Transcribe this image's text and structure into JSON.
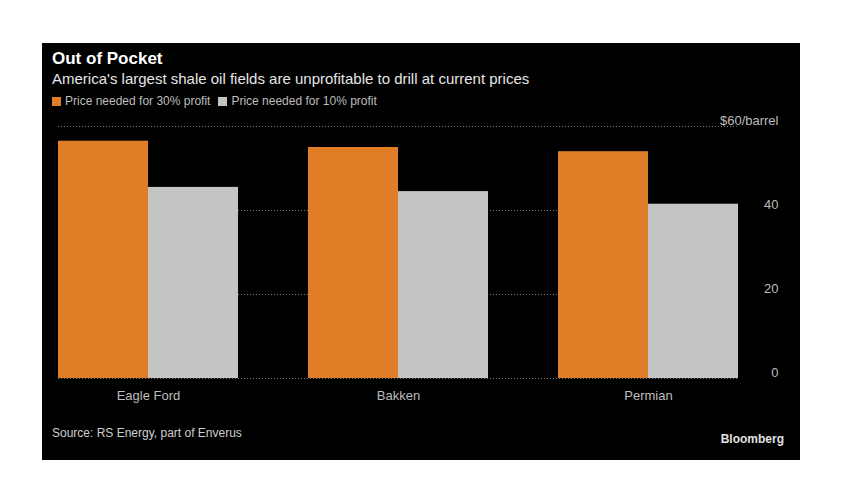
{
  "chart_data": {
    "type": "bar",
    "title": "Out of Pocket",
    "subtitle": "America's largest shale oil fields are unprofitable to drill at current prices",
    "categories": [
      "Eagle Ford",
      "Bakken",
      "Permian"
    ],
    "series": [
      {
        "name": "Price needed for 30% profit",
        "color": "#e07e27",
        "values": [
          56.5,
          55,
          54
        ]
      },
      {
        "name": "Price needed for 10% profit",
        "color": "#c4c4c4",
        "values": [
          45.5,
          44.5,
          41.5
        ]
      }
    ],
    "ylim": [
      0,
      60
    ],
    "yticks": [
      0,
      20,
      40,
      {
        "value": 60,
        "label": "$60/barrel"
      }
    ],
    "grid": true,
    "legend": "top-left",
    "source": "Source: RS Energy, part of Enverus",
    "credit": "Bloomberg"
  }
}
